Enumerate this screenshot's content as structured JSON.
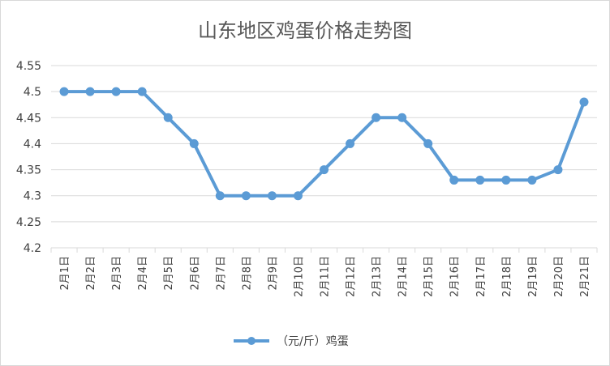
{
  "chart_data": {
    "type": "line",
    "title": "山东地区鸡蛋价格走势图",
    "xlabel": "",
    "ylabel": "",
    "categories": [
      "2月1日",
      "2月2日",
      "2月3日",
      "2月4日",
      "2月5日",
      "2月6日",
      "2月7日",
      "2月8日",
      "2月9日",
      "2月10日",
      "2月11日",
      "2月12日",
      "2月13日",
      "2月14日",
      "2月15日",
      "2月16日",
      "2月17日",
      "2月18日",
      "2月19日",
      "2月20日",
      "2月21日"
    ],
    "series": [
      {
        "name": "（元/斤）鸡蛋",
        "color": "#5b9bd5",
        "values": [
          4.5,
          4.5,
          4.5,
          4.5,
          4.45,
          4.4,
          4.3,
          4.3,
          4.3,
          4.3,
          4.35,
          4.4,
          4.45,
          4.45,
          4.4,
          4.33,
          4.33,
          4.33,
          4.33,
          4.35,
          4.48
        ]
      }
    ],
    "ylim": [
      4.2,
      4.55
    ],
    "yticks": [
      "4.2",
      "4.25",
      "4.3",
      "4.35",
      "4.4",
      "4.45",
      "4.5",
      "4.55"
    ],
    "grid": true,
    "legend_position": "bottom"
  }
}
